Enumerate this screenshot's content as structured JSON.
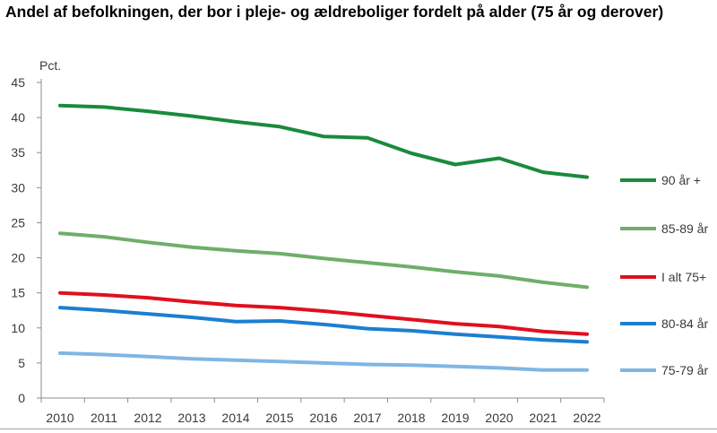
{
  "title": "Andel af befolkningen, der bor i pleje- og ældreboliger fordelt på alder (75 år og derover)",
  "chart_data": {
    "type": "line",
    "title": "Andel af befolkningen, der bor i pleje- og ældreboliger fordelt på alder (75 år og derover)",
    "ylabel": "Pct.",
    "xlabel": "",
    "ylim": [
      0,
      45
    ],
    "yticks": [
      0,
      5,
      10,
      15,
      20,
      25,
      30,
      35,
      40,
      45
    ],
    "categories": [
      "2010",
      "2011",
      "2012",
      "2013",
      "2014",
      "2015",
      "2016",
      "2017",
      "2018",
      "2019",
      "2020",
      "2021",
      "2022"
    ],
    "grid": false,
    "legend_position": "right, at series end",
    "series": [
      {
        "name": "90 år +",
        "color": "#1a8a3c",
        "values": [
          41.7,
          41.5,
          40.9,
          40.2,
          39.4,
          38.7,
          37.3,
          37.1,
          34.9,
          33.3,
          34.2,
          32.2,
          31.5
        ]
      },
      {
        "name": "85-89 år",
        "color": "#6fae6a",
        "values": [
          23.5,
          23.0,
          22.2,
          21.5,
          21.0,
          20.6,
          19.9,
          19.3,
          18.7,
          18.0,
          17.4,
          16.5,
          15.8
        ]
      },
      {
        "name": "I alt 75+",
        "color": "#e0101e",
        "values": [
          15.0,
          14.7,
          14.3,
          13.7,
          13.2,
          12.9,
          12.4,
          11.8,
          11.2,
          10.6,
          10.2,
          9.5,
          9.1
        ]
      },
      {
        "name": "80-84 år",
        "color": "#1c7fd0",
        "values": [
          12.9,
          12.5,
          12.0,
          11.5,
          10.9,
          11.0,
          10.5,
          9.9,
          9.6,
          9.1,
          8.7,
          8.3,
          8.0
        ]
      },
      {
        "name": "75-79 år",
        "color": "#7fb6e4",
        "values": [
          6.4,
          6.2,
          5.9,
          5.6,
          5.4,
          5.2,
          5.0,
          4.8,
          4.7,
          4.5,
          4.3,
          4.0,
          4.0
        ]
      }
    ]
  }
}
